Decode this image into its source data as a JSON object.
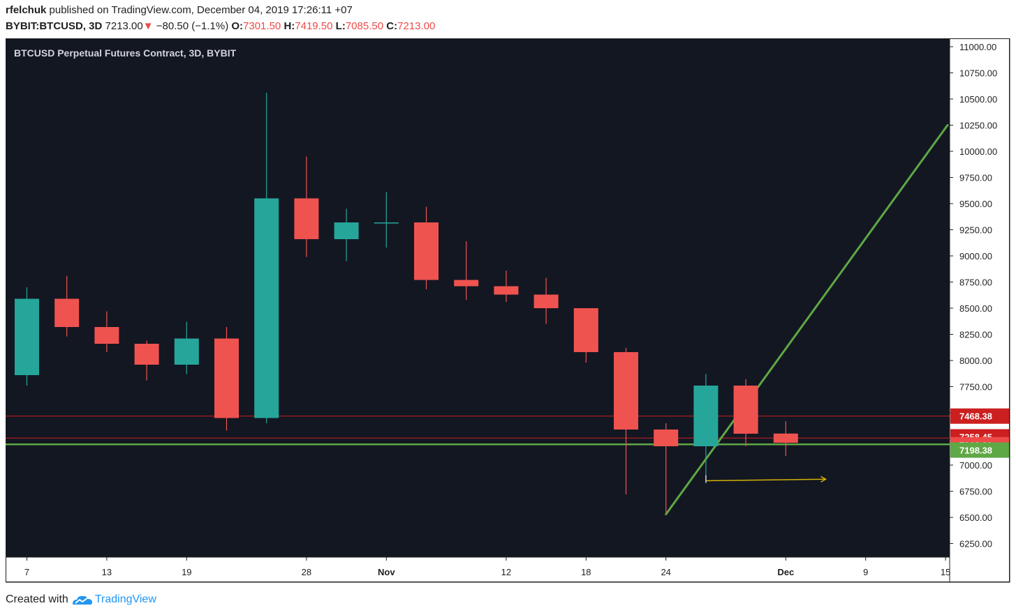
{
  "header": {
    "author": "rfelchuk",
    "published_text": " published on TradingView.com, December 04, 2019 17:26:11 +07",
    "symbol": "BYBIT:BTCUSD, 3D",
    "last_price": "7213.00",
    "change_arrow": "▼",
    "change": "−80.50 (−1.1%)",
    "o_label": "O:",
    "o_value": "7301.50",
    "h_label": "H:",
    "h_value": "7419.50",
    "l_label": "L:",
    "l_value": "7085.50",
    "c_label": "C:",
    "c_value": "7213.00"
  },
  "footer": {
    "created_with": "Created with",
    "brand": "TradingView"
  },
  "chart_data": {
    "type": "candlestick",
    "title": "BTCUSD Perpetual Futures Contract, 3D, BYBIT",
    "ylim": [
      6120,
      11080
    ],
    "y_ticks": [
      "6250.00",
      "6500.00",
      "6750.00",
      "7000.00",
      "7250.00",
      "7500.00",
      "7750.00",
      "8000.00",
      "8250.00",
      "8500.00",
      "8750.00",
      "9000.00",
      "9250.00",
      "9500.00",
      "9750.00",
      "10000.00",
      "10250.00",
      "10500.00",
      "10750.00",
      "11000.00"
    ],
    "x_ticks": [
      {
        "label": "7",
        "slot": 0
      },
      {
        "label": "13",
        "slot": 2
      },
      {
        "label": "19",
        "slot": 4
      },
      {
        "label": "28",
        "slot": 7
      },
      {
        "label": "Nov",
        "slot": 9
      },
      {
        "label": "12",
        "slot": 12
      },
      {
        "label": "18",
        "slot": 14
      },
      {
        "label": "24",
        "slot": 16
      },
      {
        "label": "Dec",
        "slot": 19
      },
      {
        "label": "9",
        "slot": 21
      },
      {
        "label": "15",
        "slot": 23
      }
    ],
    "candles": [
      {
        "o": 7860,
        "h": 8700,
        "l": 7760,
        "c": 8590
      },
      {
        "o": 8590,
        "h": 8810,
        "l": 8230,
        "c": 8320
      },
      {
        "o": 8320,
        "h": 8470,
        "l": 8080,
        "c": 8160
      },
      {
        "o": 8160,
        "h": 8190,
        "l": 7810,
        "c": 7960
      },
      {
        "o": 7960,
        "h": 8370,
        "l": 7870,
        "c": 8210
      },
      {
        "o": 8210,
        "h": 8320,
        "l": 7330,
        "c": 7450
      },
      {
        "o": 7450,
        "h": 10560,
        "l": 7400,
        "c": 9550
      },
      {
        "o": 9550,
        "h": 9950,
        "l": 8990,
        "c": 9160
      },
      {
        "o": 9160,
        "h": 9450,
        "l": 8950,
        "c": 9320
      },
      {
        "o": 9320,
        "h": 9610,
        "l": 9080,
        "c": 9320
      },
      {
        "o": 9320,
        "h": 9470,
        "l": 8680,
        "c": 8770
      },
      {
        "o": 8770,
        "h": 9140,
        "l": 8580,
        "c": 8710
      },
      {
        "o": 8710,
        "h": 8860,
        "l": 8560,
        "c": 8630
      },
      {
        "o": 8630,
        "h": 8790,
        "l": 8350,
        "c": 8500
      },
      {
        "o": 8500,
        "h": 8500,
        "l": 7980,
        "c": 8080
      },
      {
        "o": 8080,
        "h": 8120,
        "l": 6720,
        "c": 7340
      },
      {
        "o": 7340,
        "h": 7400,
        "l": 6540,
        "c": 7180
      },
      {
        "o": 7180,
        "h": 7870,
        "l": 6850,
        "c": 7760
      },
      {
        "o": 7760,
        "h": 7820,
        "l": 7180,
        "c": 7300
      },
      {
        "o": 7301.5,
        "h": 7419.5,
        "l": 7085.5,
        "c": 7213
      }
    ],
    "hlines": [
      {
        "value": 7468.38,
        "label": "7468.38",
        "color": "#cc1f1f",
        "style": "thin"
      },
      {
        "value": 7258.45,
        "label": "7258.45",
        "color": "#cc1f1f",
        "style": "thin"
      },
      {
        "value": 7198.38,
        "label": "7198.38",
        "color": "#5ea845",
        "style": "thick"
      }
    ],
    "last_price": {
      "value": 7213.0,
      "label": "7213.00",
      "color": "#ee4a4a"
    },
    "trendline": {
      "x1": 16.0,
      "y1": 6530,
      "x2": 23.05,
      "y2": 10250,
      "color": "#5ea845"
    },
    "arrow": {
      "x1": 17.0,
      "y1": 6850,
      "x2": 20.0,
      "y2": 6865,
      "color": "#d4b106"
    },
    "colors": {
      "up": "#26a69a",
      "down": "#ef5350",
      "bg": "#131722",
      "grid_text": "#1f1f1f"
    }
  }
}
